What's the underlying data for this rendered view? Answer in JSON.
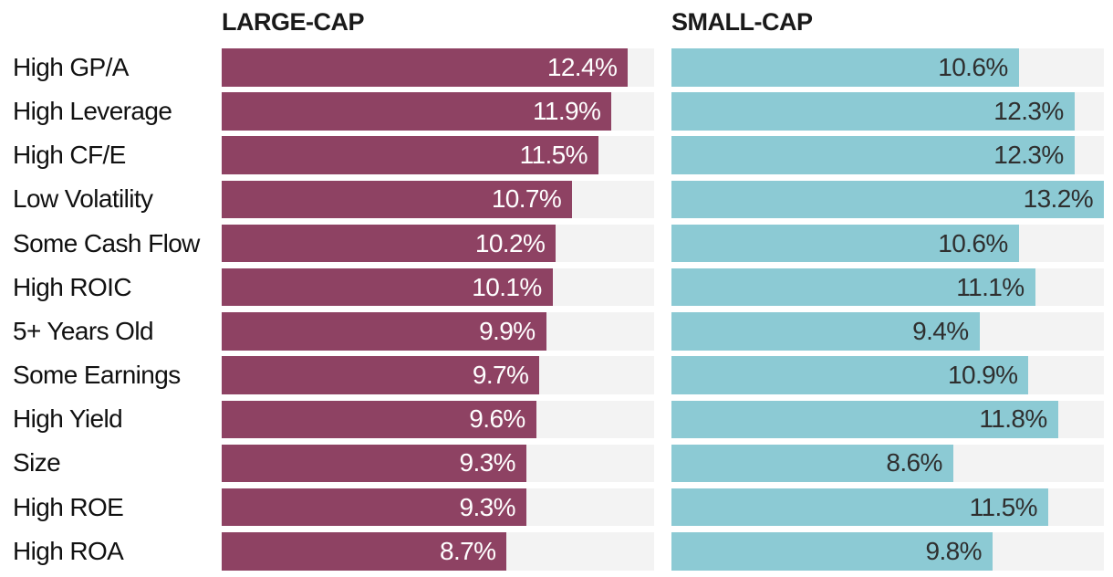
{
  "page": {
    "background_color": "#ffffff"
  },
  "chart_data": {
    "type": "bar",
    "orientation": "horizontal",
    "title": "",
    "categories": [
      "High GP/A",
      "High Leverage",
      "High CF/E",
      "Low Volatility",
      "Some Cash Flow",
      "High ROIC",
      "5+ Years Old",
      "Some Earnings",
      "High Yield",
      "Size",
      "High ROE",
      "High ROA"
    ],
    "series": [
      {
        "name": "LARGE-CAP",
        "color": "#8e4263",
        "label_color": "#ffffff",
        "values": [
          12.4,
          11.9,
          11.5,
          10.7,
          10.2,
          10.1,
          9.9,
          9.7,
          9.6,
          9.3,
          9.3,
          8.7
        ]
      },
      {
        "name": "SMALL-CAP",
        "color": "#8ccad4",
        "label_color": "#2f2f2f",
        "values": [
          10.6,
          12.3,
          12.3,
          13.2,
          10.6,
          11.1,
          9.4,
          10.9,
          11.8,
          8.6,
          11.5,
          9.8
        ]
      }
    ],
    "value_suffix": "%",
    "value_decimals": 1,
    "value_label_position": "inside-end",
    "xlim": [
      0,
      13.2
    ],
    "track_color": "#f3f3f3",
    "grid": "off",
    "legend_position": "column-headers",
    "category_label_color": "#111111",
    "header_color": "#1a1a1a"
  }
}
